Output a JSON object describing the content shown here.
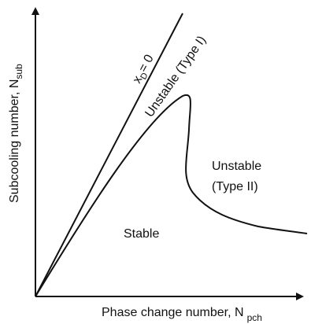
{
  "axes": {
    "y_label": "Subcooling number, N",
    "y_label_sub": "sub",
    "x_label": "Phase change number, N",
    "x_label_sub": "pch"
  },
  "lines": {
    "xd_zero_main": "x",
    "xd_zero_sub": "D",
    "xd_zero_eq": "= 0"
  },
  "regions": {
    "unstable_type1": "Unstable (Type I)",
    "unstable_type2_line1": "Unstable",
    "unstable_type2_line2": "(Type II)",
    "stable": "Stable"
  },
  "colors": {
    "ink": "#111111",
    "background": "#ffffff"
  }
}
